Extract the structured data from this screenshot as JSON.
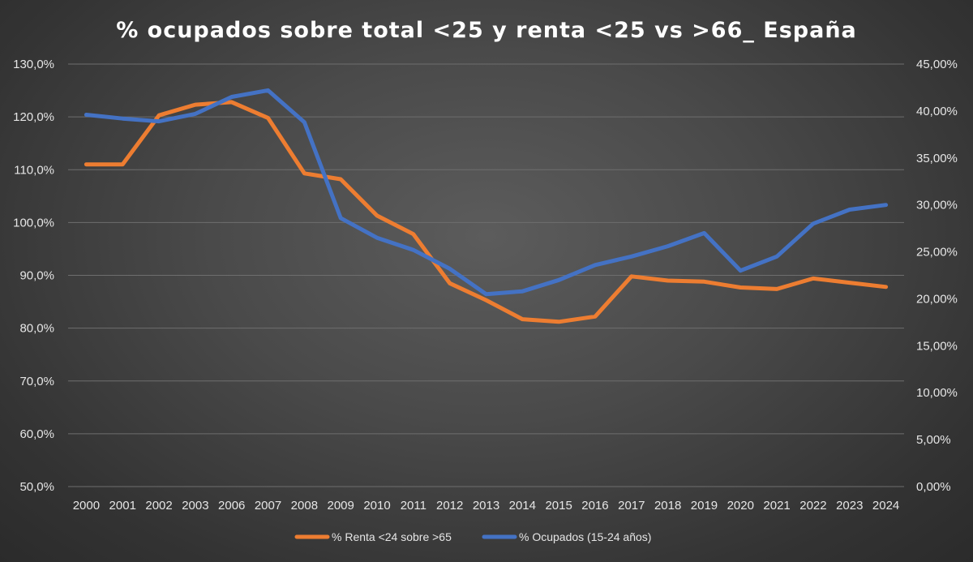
{
  "chart_data": {
    "type": "line",
    "title": "% ocupados sobre total <25 y renta <25 vs >66_ España",
    "categories": [
      "2000",
      "2001",
      "2002",
      "2003",
      "2006",
      "2007",
      "2008",
      "2009",
      "2010",
      "2011",
      "2012",
      "2013",
      "2014",
      "2015",
      "2016",
      "2017",
      "2018",
      "2019",
      "2020",
      "2021",
      "2022",
      "2023",
      "2024"
    ],
    "series": [
      {
        "name": "% Renta <24 sobre >65",
        "axis": "left",
        "color": "#ed7d31",
        "values": [
          111.0,
          111.0,
          120.3,
          122.3,
          122.8,
          119.8,
          109.3,
          108.2,
          101.3,
          97.8,
          88.5,
          85.3,
          81.7,
          81.2,
          82.2,
          89.8,
          89.0,
          88.8,
          87.7,
          87.4,
          89.4,
          88.6,
          87.8
        ]
      },
      {
        "name": "% Ocupados (15-24 años)",
        "axis": "right",
        "color": "#4472c4",
        "values": [
          39.6,
          39.2,
          38.9,
          39.7,
          41.5,
          42.2,
          38.8,
          28.6,
          26.5,
          25.2,
          23.2,
          20.5,
          20.8,
          22.0,
          23.6,
          24.5,
          25.6,
          27.0,
          23.0,
          24.5,
          28.0,
          29.5,
          30.0
        ]
      }
    ],
    "y_left": {
      "min": 50,
      "max": 130,
      "step": 10,
      "tick_labels": [
        "50,0%",
        "60,0%",
        "70,0%",
        "80,0%",
        "90,0%",
        "100,0%",
        "110,0%",
        "120,0%",
        "130,0%"
      ]
    },
    "y_right": {
      "min": 0,
      "max": 45,
      "step": 5,
      "tick_labels": [
        "0,00%",
        "5,00%",
        "10,00%",
        "15,00%",
        "20,00%",
        "25,00%",
        "30,00%",
        "35,00%",
        "40,00%",
        "45,00%"
      ]
    },
    "grid": true,
    "legend_position": "bottom"
  }
}
